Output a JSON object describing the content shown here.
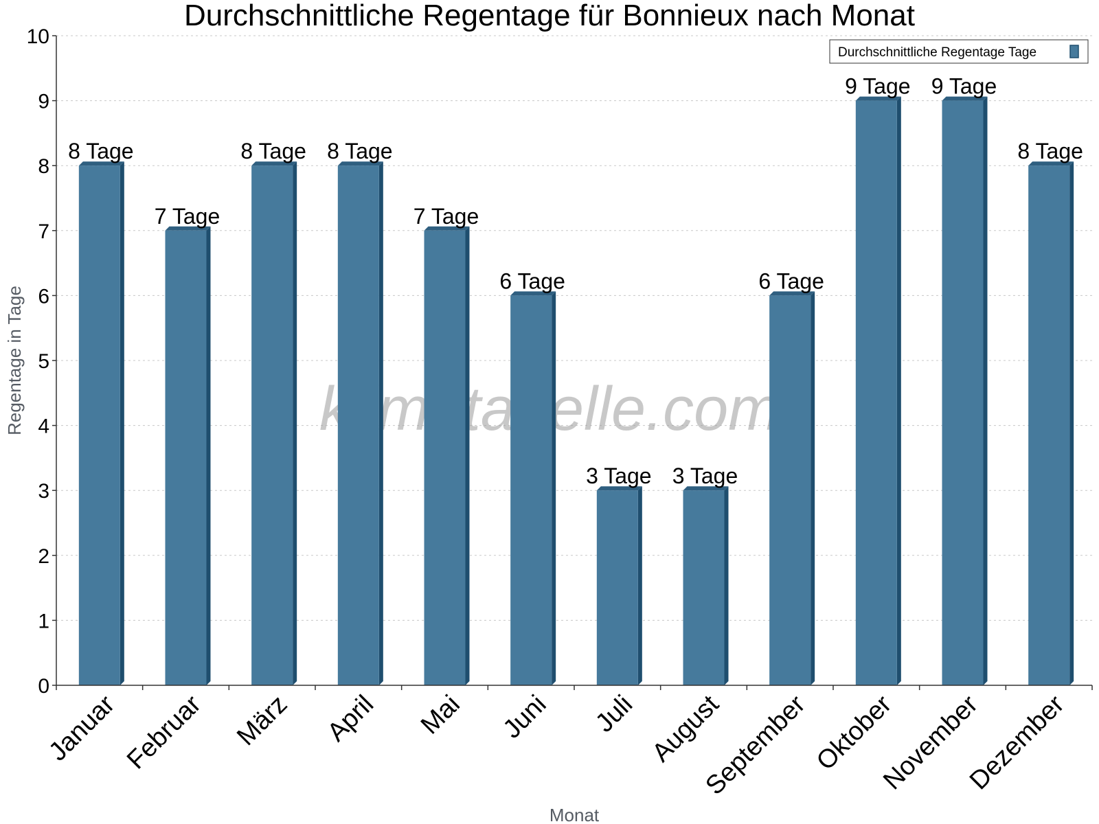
{
  "chart_data": {
    "type": "bar",
    "title": "Durchschnittliche Regentage für Bonnieux nach Monat",
    "xlabel": "Monat",
    "ylabel": "Regentage in Tage",
    "ylim": [
      0,
      10
    ],
    "yticks": [
      0,
      1,
      2,
      3,
      4,
      5,
      6,
      7,
      8,
      9,
      10
    ],
    "grid": true,
    "legend_position": "top-right",
    "categories": [
      "Januar",
      "Februar",
      "März",
      "April",
      "Mai",
      "Juni",
      "Juli",
      "August",
      "September",
      "Oktober",
      "November",
      "Dezember"
    ],
    "series": [
      {
        "name": "Durchschnittliche Regentage Tage",
        "values": [
          8,
          7,
          8,
          8,
          7,
          6,
          3,
          3,
          6,
          9,
          9,
          8
        ],
        "labels": [
          "8 Tage",
          "7 Tage",
          "8 Tage",
          "8 Tage",
          "7 Tage",
          "6 Tage",
          "3 Tage",
          "3 Tage",
          "6 Tage",
          "9 Tage",
          "9 Tage",
          "8 Tage"
        ]
      }
    ],
    "colors": {
      "bar": "#467a9c",
      "bar_side": "#1f4e6e",
      "bar_top": "#2f5f80"
    }
  },
  "watermark": "klimatabelle.com"
}
